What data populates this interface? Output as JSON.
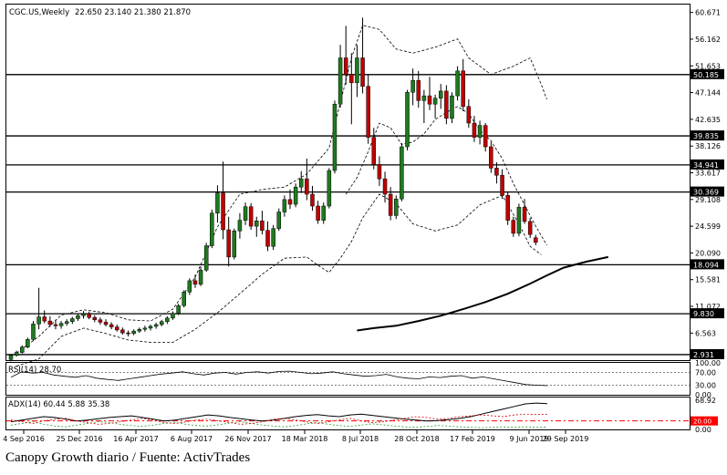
{
  "caption": "Canopy Growth diario / Fuente: ActivTrades",
  "header": {
    "symbol": "CGC.US,Weekly",
    "ohlc": "22.650 23.140 21.380 21.870"
  },
  "colors": {
    "up": "#1f7a1f",
    "down": "#c00000",
    "frame": "#000000",
    "grid": "#000000",
    "adx_minus": "#d00000",
    "adx_plus": "#2a9a2a",
    "level_line": "#ff0000"
  },
  "chart_data": [
    {
      "type": "candlestick",
      "title": "CGC.US,Weekly",
      "ohlc_last": {
        "open": 22.65,
        "high": 23.14,
        "low": 21.38,
        "close": 21.87
      },
      "y_ticks": [
        60.671,
        56.162,
        51.653,
        47.144,
        42.635,
        38.126,
        33.617,
        29.108,
        24.599,
        20.09,
        15.581,
        11.072,
        6.563
      ],
      "ylim": [
        2.0,
        62.0
      ],
      "x_ticks": [
        "4 Sep 2016",
        "25 Dec 2016",
        "16 Apr 2017",
        "6 Aug 2017",
        "26 Nov 2017",
        "18 Mar 2018",
        "8 Jul 2018",
        "28 Oct 2018",
        "17 Feb 2019",
        "9 Jun 2019",
        "29 Sep 2019"
      ],
      "horizontal_levels": [
        50.185,
        39.835,
        34.941,
        30.369,
        18.094,
        9.83,
        2.931
      ],
      "candles": [
        [
          2.1,
          3.0,
          1.8,
          2.8
        ],
        [
          2.8,
          3.6,
          2.6,
          3.3
        ],
        [
          3.3,
          4.5,
          3.1,
          4.2
        ],
        [
          4.2,
          5.8,
          4.0,
          5.5
        ],
        [
          5.5,
          8.6,
          5.2,
          8.1
        ],
        [
          8.1,
          14.2,
          7.2,
          9.3
        ],
        [
          9.3,
          10.4,
          8.2,
          8.6
        ],
        [
          8.6,
          9.4,
          7.6,
          8.0
        ],
        [
          8.0,
          8.8,
          7.2,
          7.8
        ],
        [
          7.8,
          8.6,
          7.3,
          8.2
        ],
        [
          8.2,
          8.9,
          7.8,
          8.5
        ],
        [
          8.5,
          9.3,
          8.1,
          9.0
        ],
        [
          9.0,
          9.9,
          8.6,
          9.5
        ],
        [
          9.5,
          10.3,
          9.0,
          9.8
        ],
        [
          9.8,
          10.2,
          8.9,
          9.2
        ],
        [
          9.2,
          9.6,
          8.4,
          8.8
        ],
        [
          8.8,
          9.2,
          8.0,
          8.4
        ],
        [
          8.4,
          8.9,
          7.7,
          8.0
        ],
        [
          8.0,
          8.4,
          7.2,
          7.6
        ],
        [
          7.6,
          8.0,
          6.8,
          7.1
        ],
        [
          7.1,
          7.5,
          6.3,
          6.6
        ],
        [
          6.6,
          7.0,
          6.0,
          6.5
        ],
        [
          6.5,
          7.2,
          6.2,
          6.9
        ],
        [
          6.9,
          7.5,
          6.6,
          7.2
        ],
        [
          7.2,
          7.8,
          6.8,
          7.4
        ],
        [
          7.4,
          8.0,
          7.0,
          7.7
        ],
        [
          7.7,
          8.3,
          7.3,
          8.0
        ],
        [
          8.0,
          8.8,
          7.7,
          8.5
        ],
        [
          8.5,
          9.4,
          8.1,
          9.1
        ],
        [
          9.1,
          10.2,
          8.8,
          9.9
        ],
        [
          9.9,
          11.5,
          9.6,
          11.2
        ],
        [
          11.2,
          13.8,
          10.9,
          13.5
        ],
        [
          13.5,
          15.8,
          13.0,
          15.4
        ],
        [
          15.4,
          16.4,
          14.2,
          14.8
        ],
        [
          14.8,
          17.8,
          14.5,
          17.2
        ],
        [
          17.2,
          21.8,
          16.9,
          21.3
        ],
        [
          21.3,
          27.4,
          20.9,
          26.8
        ],
        [
          26.8,
          31.5,
          25.2,
          30.2
        ],
        [
          30.2,
          35.5,
          22.4,
          24.0
        ],
        [
          24.0,
          26.2,
          17.8,
          19.4
        ],
        [
          19.4,
          24.2,
          19.0,
          23.8
        ],
        [
          23.8,
          26.8,
          22.5,
          25.6
        ],
        [
          25.6,
          28.6,
          24.8,
          27.9
        ],
        [
          27.9,
          28.5,
          24.0,
          24.6
        ],
        [
          24.6,
          26.2,
          22.8,
          25.5
        ],
        [
          25.5,
          27.2,
          23.2,
          23.9
        ],
        [
          23.9,
          25.4,
          20.4,
          21.2
        ],
        [
          21.2,
          24.8,
          20.6,
          24.2
        ],
        [
          24.2,
          27.6,
          23.8,
          27.0
        ],
        [
          27.0,
          29.8,
          26.2,
          29.1
        ],
        [
          29.1,
          30.8,
          27.5,
          28.3
        ],
        [
          28.3,
          31.8,
          27.8,
          31.2
        ],
        [
          31.2,
          33.9,
          30.2,
          32.6
        ],
        [
          32.6,
          36.0,
          29.0,
          30.0
        ],
        [
          30.0,
          31.4,
          27.2,
          28.0
        ],
        [
          28.0,
          28.9,
          25.0,
          25.6
        ],
        [
          25.6,
          28.6,
          25.0,
          28.0
        ],
        [
          28.0,
          34.4,
          27.6,
          34.0
        ],
        [
          34.0,
          45.8,
          33.5,
          45.2
        ],
        [
          45.2,
          55.2,
          44.6,
          53.0
        ],
        [
          53.0,
          58.4,
          48.5,
          50.2
        ],
        [
          50.2,
          53.8,
          41.8,
          48.8
        ],
        [
          48.8,
          55.2,
          46.4,
          53.0
        ],
        [
          53.0,
          59.8,
          47.0,
          48.2
        ],
        [
          48.2,
          50.2,
          38.5,
          39.6
        ],
        [
          39.6,
          41.2,
          34.2,
          35.0
        ],
        [
          35.0,
          36.4,
          31.4,
          32.6
        ],
        [
          32.6,
          33.8,
          28.6,
          30.0
        ],
        [
          30.0,
          31.2,
          25.6,
          26.4
        ],
        [
          26.4,
          29.8,
          25.8,
          29.2
        ],
        [
          29.2,
          38.6,
          28.8,
          38.0
        ],
        [
          38.0,
          47.6,
          37.4,
          47.2
        ],
        [
          47.2,
          51.2,
          45.0,
          49.2
        ],
        [
          49.2,
          50.8,
          44.6,
          45.8
        ],
        [
          45.8,
          47.6,
          42.0,
          46.6
        ],
        [
          46.6,
          49.8,
          44.2,
          45.2
        ],
        [
          45.2,
          46.8,
          42.8,
          46.2
        ],
        [
          46.2,
          48.6,
          44.4,
          47.4
        ],
        [
          47.4,
          48.4,
          41.8,
          42.8
        ],
        [
          42.8,
          47.2,
          42.0,
          46.6
        ],
        [
          46.6,
          51.6,
          45.8,
          50.8
        ],
        [
          50.8,
          52.8,
          44.0,
          44.8
        ],
        [
          44.8,
          46.0,
          41.2,
          42.0
        ],
        [
          42.0,
          43.2,
          38.8,
          39.6
        ],
        [
          39.6,
          42.4,
          38.4,
          41.6
        ],
        [
          41.6,
          42.0,
          37.2,
          38.0
        ],
        [
          38.0,
          38.8,
          33.6,
          34.4
        ],
        [
          34.4,
          35.4,
          31.8,
          33.2
        ],
        [
          33.2,
          34.2,
          29.2,
          29.8
        ],
        [
          29.8,
          30.4,
          24.8,
          25.6
        ],
        [
          25.6,
          26.2,
          22.8,
          23.4
        ],
        [
          23.4,
          28.4,
          22.9,
          27.8
        ],
        [
          27.8,
          29.2,
          25.0,
          25.4
        ],
        [
          25.4,
          26.0,
          22.6,
          23.2
        ],
        [
          22.65,
          23.14,
          21.38,
          21.87
        ]
      ],
      "sma_200": [
        [
          62,
          7.0
        ],
        [
          65,
          7.4
        ],
        [
          69,
          7.8
        ],
        [
          73,
          8.6
        ],
        [
          77,
          9.5
        ],
        [
          81,
          10.6
        ],
        [
          85,
          11.8
        ],
        [
          89,
          13.2
        ],
        [
          93,
          14.9
        ],
        [
          96,
          16.3
        ],
        [
          99,
          17.6
        ],
        [
          103,
          18.6
        ],
        [
          107,
          19.4
        ]
      ],
      "bollinger_upper": [
        [
          1,
          3.2
        ],
        [
          5,
          6.0
        ],
        [
          9,
          9.6
        ],
        [
          13,
          10.5
        ],
        [
          17,
          10.0
        ],
        [
          21,
          8.8
        ],
        [
          25,
          8.6
        ],
        [
          29,
          10.6
        ],
        [
          33,
          16.0
        ],
        [
          37,
          24.5
        ],
        [
          41,
          30.0
        ],
        [
          45,
          30.8
        ],
        [
          49,
          31.2
        ],
        [
          53,
          33.4
        ],
        [
          57,
          37.8
        ],
        [
          61,
          53.0
        ],
        [
          63,
          58.5
        ],
        [
          66,
          57.8
        ],
        [
          69,
          54.5
        ],
        [
          72,
          53.8
        ],
        [
          76,
          54.8
        ],
        [
          80,
          56.2
        ],
        [
          82,
          53.0
        ],
        [
          86,
          50.2
        ],
        [
          90,
          51.6
        ],
        [
          93,
          53.0
        ],
        [
          95,
          48.5
        ],
        [
          96,
          46.0
        ]
      ],
      "bollinger_lower": [
        [
          1,
          1.0
        ],
        [
          5,
          2.2
        ],
        [
          9,
          6.0
        ],
        [
          13,
          7.4
        ],
        [
          17,
          6.5
        ],
        [
          21,
          5.4
        ],
        [
          25,
          5.0
        ],
        [
          29,
          5.0
        ],
        [
          33,
          7.2
        ],
        [
          37,
          10.0
        ],
        [
          41,
          13.2
        ],
        [
          45,
          16.5
        ],
        [
          49,
          19.2
        ],
        [
          53,
          19.4
        ],
        [
          55,
          18.0
        ],
        [
          57,
          16.8
        ],
        [
          59,
          19.2
        ],
        [
          61,
          22.0
        ],
        [
          63,
          26.0
        ],
        [
          66,
          30.0
        ],
        [
          69,
          28.4
        ],
        [
          72,
          25.0
        ],
        [
          76,
          23.8
        ],
        [
          80,
          24.8
        ],
        [
          84,
          28.2
        ],
        [
          88,
          29.8
        ],
        [
          91,
          25.0
        ],
        [
          93,
          21.2
        ],
        [
          95,
          19.8
        ]
      ],
      "bollinger_middle": [
        [
          60,
          30.0
        ],
        [
          62,
          32.8
        ],
        [
          64,
          37.2
        ],
        [
          66,
          42.0
        ],
        [
          68,
          41.2
        ],
        [
          70,
          38.4
        ],
        [
          72,
          38.8
        ],
        [
          74,
          40.2
        ],
        [
          76,
          42.6
        ],
        [
          78,
          43.8
        ],
        [
          80,
          44.8
        ],
        [
          82,
          43.6
        ],
        [
          84,
          40.8
        ],
        [
          86,
          39.0
        ],
        [
          88,
          36.0
        ],
        [
          90,
          31.8
        ],
        [
          92,
          28.2
        ],
        [
          94,
          24.6
        ],
        [
          96,
          21.4
        ]
      ]
    },
    {
      "type": "line",
      "title": "RSI(14) 28.70",
      "y_ticks": [
        100.0,
        70.0,
        30.0,
        0.0
      ],
      "ylim": [
        0,
        100
      ],
      "levels": [
        70,
        30
      ],
      "series": [
        {
          "values": [
            55,
            72,
            68,
            70,
            62,
            58,
            55,
            60,
            52,
            48,
            45,
            50,
            55,
            60,
            65,
            68,
            72,
            66,
            62,
            68,
            70,
            65,
            70,
            72,
            68,
            73,
            74,
            70,
            66,
            68,
            72,
            66,
            62,
            58,
            60,
            64,
            56,
            52,
            50,
            56,
            54,
            58,
            60,
            52,
            56,
            50,
            44,
            38,
            32,
            30,
            28.7
          ]
        }
      ]
    },
    {
      "type": "line",
      "title": "ADX(14) 60.44 5.88 35.38",
      "y_ticks": [
        68.92,
        20.0,
        0.0
      ],
      "ylim": [
        0,
        75
      ],
      "levels": [
        20
      ],
      "series": [
        {
          "values": [
            18,
            22,
            26,
            30,
            28,
            24,
            20,
            22,
            25,
            28,
            30,
            32,
            28,
            24,
            20,
            22,
            26,
            30,
            34,
            32,
            28,
            25,
            22,
            20,
            22,
            26,
            30,
            33,
            35,
            32,
            30,
            34,
            36,
            33,
            30,
            27,
            24,
            22,
            20,
            21,
            23,
            26,
            30,
            36,
            42,
            48,
            54,
            60,
            62,
            60.44
          ]
        },
        {
          "values": [
            10,
            14,
            18,
            12,
            8,
            6,
            10,
            14,
            18,
            16,
            12,
            9,
            7,
            10,
            14,
            16,
            12,
            9,
            8,
            11,
            15,
            18,
            14,
            10,
            8,
            6,
            9,
            13,
            16,
            12,
            9,
            7,
            10,
            13,
            11,
            8,
            6,
            5,
            7,
            9,
            8,
            6,
            5,
            4,
            5,
            6,
            5,
            6,
            5,
            5.88
          ]
        },
        {
          "values": [
            22,
            18,
            14,
            20,
            24,
            26,
            20,
            16,
            12,
            14,
            18,
            22,
            26,
            22,
            16,
            14,
            18,
            22,
            24,
            20,
            16,
            12,
            14,
            18,
            24,
            26,
            22,
            18,
            14,
            18,
            22,
            26,
            20,
            16,
            18,
            22,
            26,
            30,
            28,
            24,
            26,
            30,
            32,
            34,
            32,
            30,
            34,
            36,
            35,
            35.38
          ]
        }
      ]
    }
  ]
}
